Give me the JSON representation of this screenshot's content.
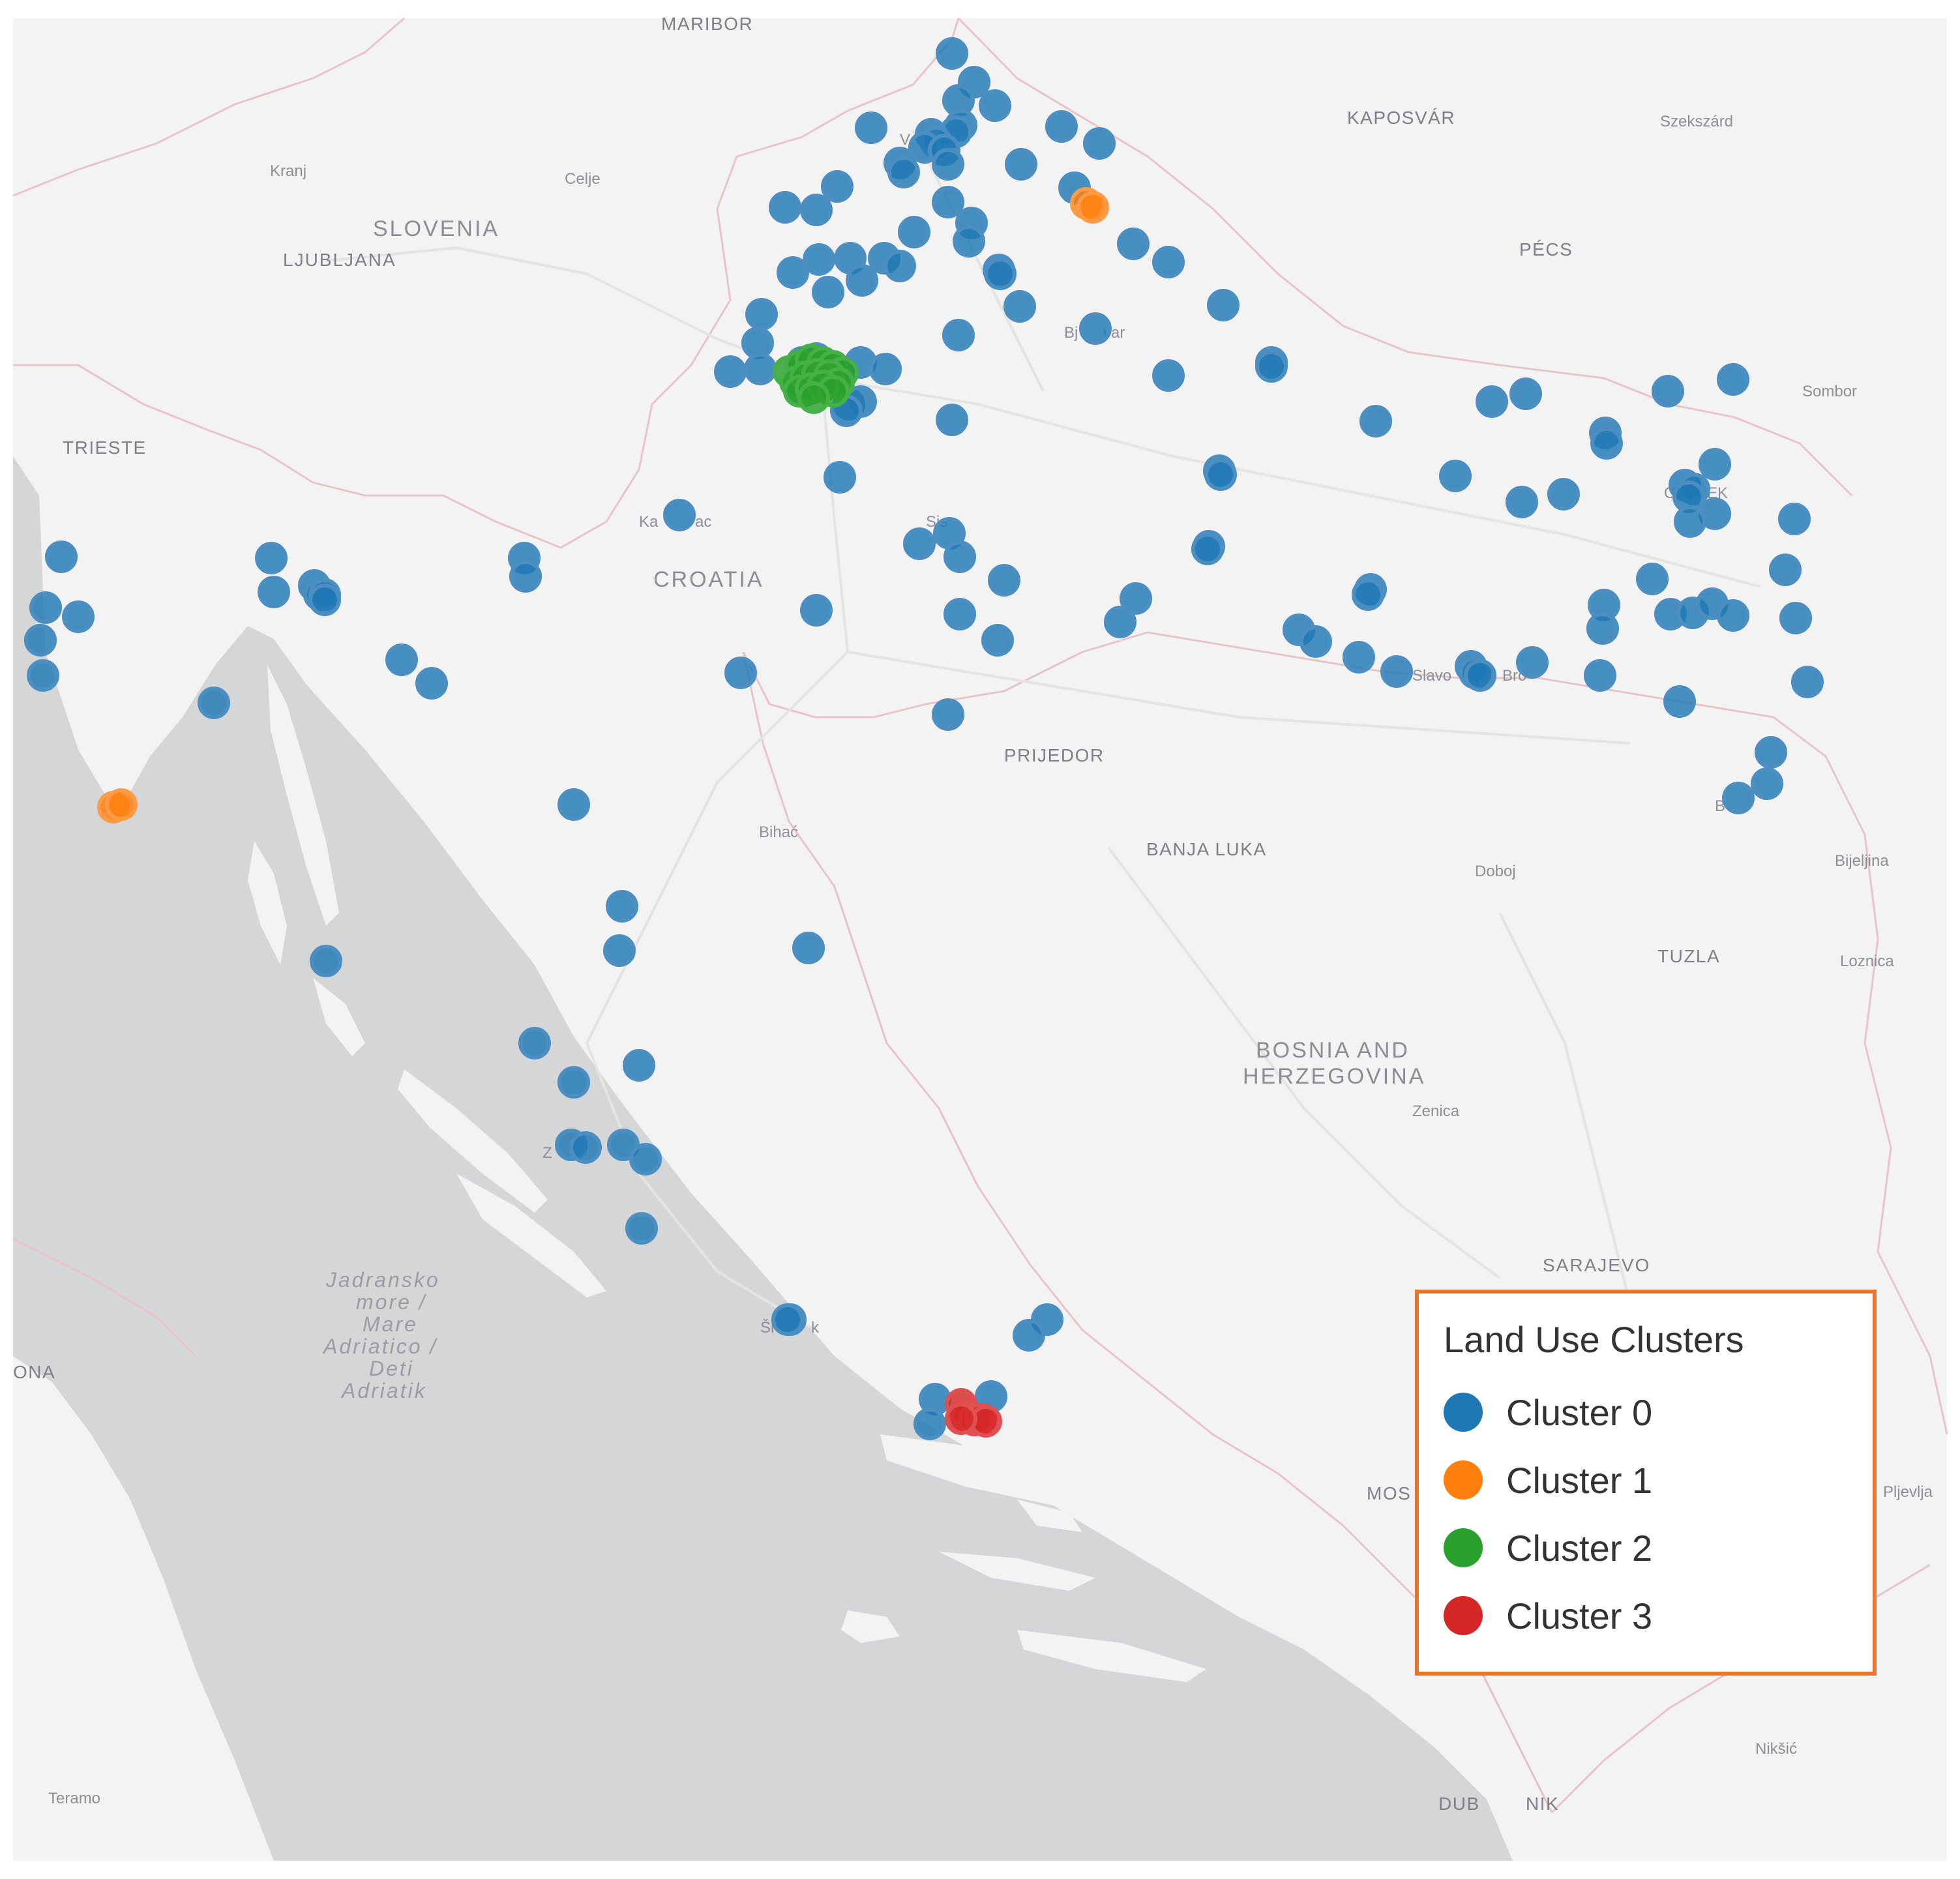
{
  "map": {
    "background": "#f3f3f3",
    "sea_color": "#d4d6d8",
    "border_color": "#e8c4c8",
    "road_color": "#e4e4e4"
  },
  "labels": {
    "countries": [
      "SLOVENIA",
      "CROATIA",
      "BOSNIA AND",
      "HERZEGOVINA"
    ],
    "capitals": [
      "LJUBLJANA",
      "SARAJEVO"
    ],
    "cities_major": [
      "MARIBOR",
      "KAPOSVÁR",
      "PÉCS",
      "TRIESTE",
      "PRIJEDOR",
      "BANJA LUKA",
      "TUZLA",
      "DUB",
      "NIK",
      "ONA",
      "MOS"
    ],
    "cities_minor": [
      "Kranj",
      "Celje",
      "Szekszárd",
      "Sombor",
      "Bihać",
      "Doboj",
      "Bijeljina",
      "Loznica",
      "Zenica",
      "Pljevlja",
      "Nikšić",
      "Teramo",
      "Bj",
      "var",
      "Ka",
      "ac",
      "Sis",
      "Slavo",
      "Bro",
      "Z",
      "Ši",
      "k",
      "V",
      "O",
      "EK",
      "B",
      "P"
    ],
    "sea": [
      "Jadransko",
      "more /",
      "Mare",
      "Adriatico /",
      "Deti",
      "Adriatik"
    ]
  },
  "legend": {
    "title": "Land Use Clusters",
    "items": [
      {
        "label": "Cluster 0",
        "color": "#1f77b4"
      },
      {
        "label": "Cluster 1",
        "color": "#ff7f0e"
      },
      {
        "label": "Cluster 2",
        "color": "#2ca02c"
      },
      {
        "label": "Cluster 3",
        "color": "#d62728"
      }
    ]
  },
  "markers": {
    "cluster_0": {
      "color": "#1f77b4",
      "stroke": "#4a8ec2",
      "count": 152
    },
    "cluster_1": {
      "color": "#ff7f0e",
      "stroke": "#ff9a45",
      "count": 4
    },
    "cluster_2": {
      "color": "#2ca02c",
      "stroke": "#45b045",
      "count": 16
    },
    "cluster_3": {
      "color": "#d62728",
      "stroke": "#e05050",
      "count": 6
    }
  }
}
